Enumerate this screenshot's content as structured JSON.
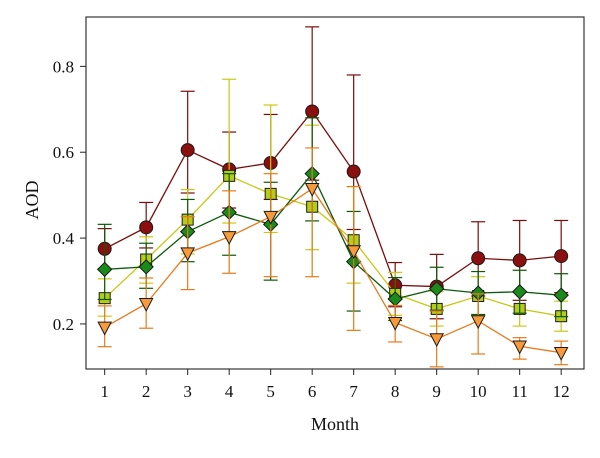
{
  "chart_data": {
    "type": "line",
    "xlabel": "Month",
    "ylabel": "AOD",
    "xlim": [
      0.55,
      12.55
    ],
    "ylim": [
      0.095,
      0.915
    ],
    "x": [
      1,
      2,
      3,
      4,
      5,
      6,
      7,
      8,
      9,
      10,
      11,
      12
    ],
    "xticks": [
      "1",
      "2",
      "3",
      "4",
      "5",
      "6",
      "7",
      "8",
      "9",
      "10",
      "11",
      "12"
    ],
    "yticks": [
      "0.2",
      "0.4",
      "0.6",
      "0.8"
    ],
    "ytick_values": [
      0.2,
      0.4,
      0.6,
      0.8
    ],
    "grid": false,
    "legend": "none",
    "series": [
      {
        "marker": "circle",
        "color": "#7b0c0c",
        "fill": "#8b0f0f",
        "values": [
          0.375,
          0.425,
          0.605,
          0.56,
          0.575,
          0.695,
          0.555,
          0.29,
          0.287,
          0.353,
          0.348,
          0.358
        ],
        "err_low": [
          0.047,
          0.048,
          0.1,
          0.09,
          0.085,
          0.16,
          0.135,
          0.05,
          0.075,
          0.088,
          0.093,
          0.085
        ],
        "err_high": [
          0.047,
          0.058,
          0.137,
          0.087,
          0.113,
          0.197,
          0.225,
          0.053,
          0.075,
          0.085,
          0.093,
          0.083
        ]
      },
      {
        "marker": "square",
        "color": "#c8c818",
        "fill": "#b5cc18",
        "values": [
          0.26,
          0.35,
          0.443,
          0.545,
          0.503,
          0.473,
          0.395,
          0.27,
          0.235,
          0.265,
          0.235,
          0.218
        ],
        "err_low": [
          0.042,
          0.055,
          0.08,
          0.11,
          0.09,
          0.1,
          0.1,
          0.05,
          0.04,
          0.045,
          0.04,
          0.035
        ],
        "err_high": [
          0.045,
          0.053,
          0.07,
          0.225,
          0.207,
          0.19,
          0.125,
          0.05,
          0.04,
          0.045,
          0.04,
          0.035
        ]
      },
      {
        "marker": "diamond",
        "color": "#0a5a0a",
        "fill": "#1a8a1a",
        "values": [
          0.327,
          0.333,
          0.415,
          0.46,
          0.432,
          0.55,
          0.345,
          0.258,
          0.282,
          0.272,
          0.275,
          0.267
        ],
        "err_low": [
          0.07,
          0.05,
          0.07,
          0.1,
          0.13,
          0.11,
          0.115,
          0.05,
          0.05,
          0.05,
          0.05,
          0.05
        ],
        "err_high": [
          0.105,
          0.055,
          0.075,
          0.09,
          0.098,
          0.13,
          0.117,
          0.05,
          0.05,
          0.05,
          0.05,
          0.05
        ]
      },
      {
        "marker": "triangle-down",
        "color": "#e87a1a",
        "fill": "#f79a3a",
        "values": [
          0.192,
          0.247,
          0.365,
          0.403,
          0.45,
          0.515,
          0.37,
          0.203,
          0.165,
          0.207,
          0.148,
          0.133
        ],
        "err_low": [
          0.045,
          0.057,
          0.085,
          0.085,
          0.14,
          0.205,
          0.185,
          0.045,
          0.065,
          0.077,
          0.03,
          0.028
        ],
        "err_high": [
          0.05,
          0.06,
          0.085,
          0.107,
          0.1,
          0.095,
          0.15,
          0.04,
          0.065,
          0.063,
          0.02,
          0.027
        ]
      }
    ]
  }
}
